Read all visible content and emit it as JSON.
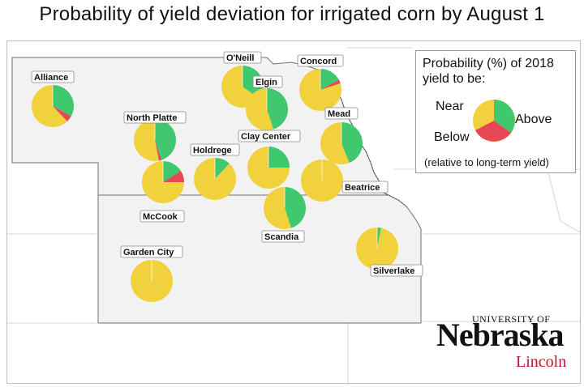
{
  "title": "Probability of yield deviation for irrigated corn by August 1",
  "legend": {
    "title": "Probability (%) of 2018 yield to be:",
    "near_label": "Near",
    "below_label": "Below",
    "above_label": "Above",
    "note": "(relative to long-term yield)"
  },
  "colors": {
    "near": "#F2D23C",
    "above": "#3FC86E",
    "below": "#E84855"
  },
  "sites": [
    {
      "name": "Alliance",
      "above": 33,
      "below": 5,
      "near": 62
    },
    {
      "name": "O'Neill",
      "above": 35,
      "below": 0,
      "near": 65
    },
    {
      "name": "Elgin",
      "above": 45,
      "below": 0,
      "near": 55
    },
    {
      "name": "Concord",
      "above": 17,
      "below": 3,
      "near": 80
    },
    {
      "name": "North Platte",
      "above": 45,
      "below": 2,
      "near": 53
    },
    {
      "name": "Mead",
      "above": 44,
      "below": 0,
      "near": 56
    },
    {
      "name": "Clay Center",
      "above": 25,
      "below": 0,
      "near": 75
    },
    {
      "name": "Holdrege",
      "above": 12,
      "below": 0,
      "near": 88
    },
    {
      "name": "McCook",
      "above": 16,
      "below": 9,
      "near": 75
    },
    {
      "name": "Beatrice",
      "above": 0,
      "below": 0,
      "near": 100
    },
    {
      "name": "Scandia",
      "above": 45,
      "below": 0,
      "near": 55
    },
    {
      "name": "Silverlake",
      "above": 3,
      "below": 0,
      "near": 97
    },
    {
      "name": "Garden City",
      "above": 0,
      "below": 0,
      "near": 100
    }
  ],
  "logo": {
    "university": "UNIVERSITY OF",
    "name": "Nebraska",
    "campus": "Lincoln"
  }
}
